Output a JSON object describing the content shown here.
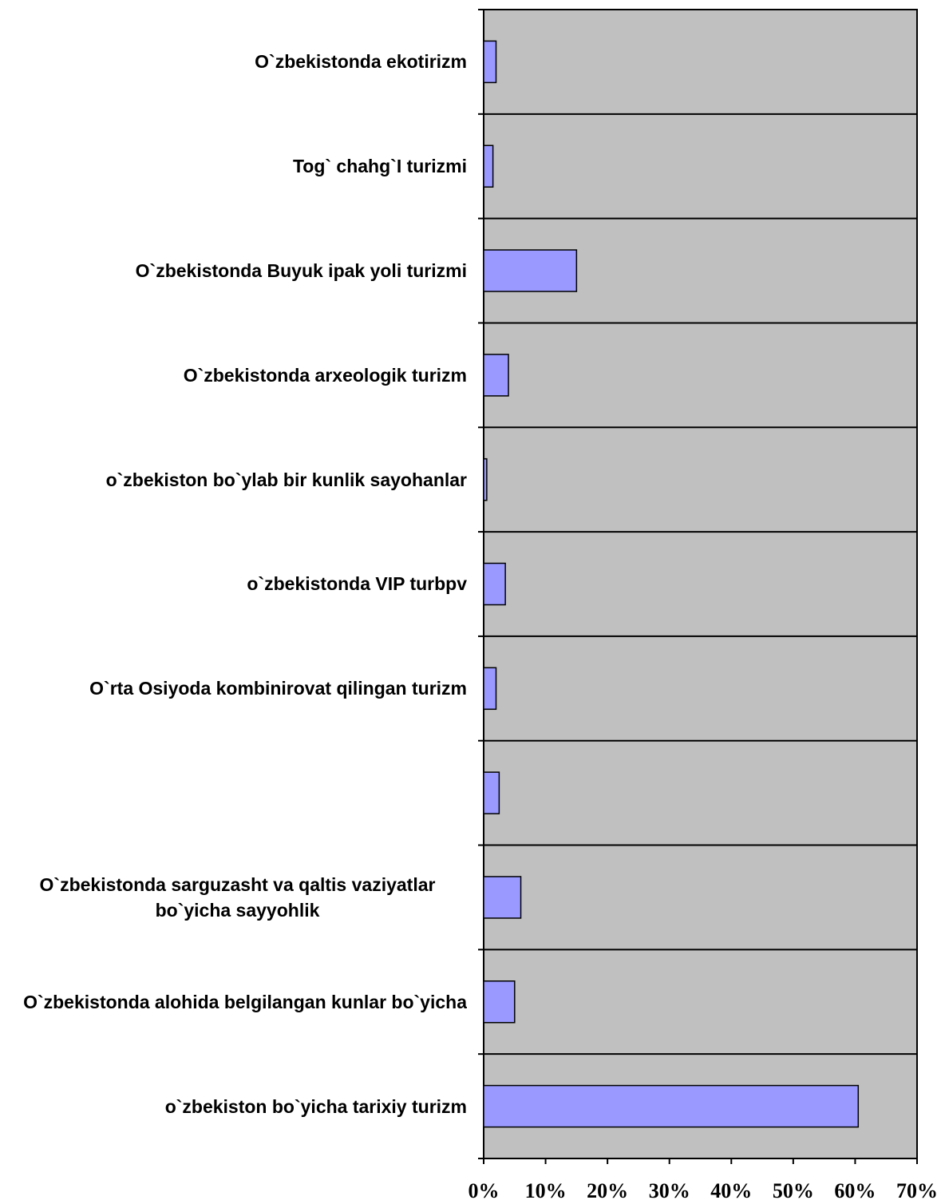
{
  "chart_data": {
    "type": "barh",
    "categories": [
      "O`zbekistonda ekotirizm",
      "Tog` chahg`I turizmi",
      "O`zbekistonda Buyuk ipak yoli turizmi",
      "O`zbekistonda arxeologik turizm",
      "o`zbekiston bo`ylab bir kunlik sayohanlar",
      "o`zbekistonda VIP turbpv",
      "O`rta Osiyoda kombinirovat qilingan turizm",
      null,
      "O`zbekistonda sarguzasht va qaltis vaziyatlar bo`yicha sayyohlik",
      "O`zbekistonda alohida belgilangan kunlar bo`yicha",
      "o`zbekiston bo`yicha tarixiy turizm"
    ],
    "values": [
      2,
      1.5,
      15,
      4,
      0.5,
      3.5,
      2,
      2.5,
      6,
      5,
      60.5
    ],
    "color": "#9999ff",
    "plot_background": "#c0c0c0",
    "xlim": [
      0,
      70
    ],
    "xticks": [
      {
        "value": 0,
        "label": "0%"
      },
      {
        "value": 10,
        "label": "10%"
      },
      {
        "value": 20,
        "label": "20%"
      },
      {
        "value": 30,
        "label": "30%"
      },
      {
        "value": 40,
        "label": "40%"
      },
      {
        "value": 50,
        "label": "50%"
      },
      {
        "value": 60,
        "label": "60%"
      },
      {
        "value": 70,
        "label": "70%"
      }
    ]
  }
}
